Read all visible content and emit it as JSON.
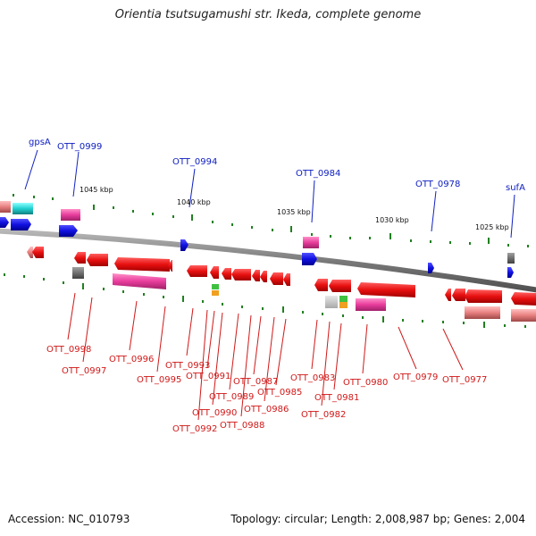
{
  "title": "Orientia tsutsugamushi str. Ikeda, complete genome",
  "footer": {
    "accession": "Accession: NC_010793",
    "topology": "Topology: circular; Length: 2,008,987 bp; Genes: 2,004"
  },
  "scale_labels": [
    "1045 kbp",
    "1040 kbp",
    "1035 kbp",
    "1030 kbp",
    "1025 kbp"
  ],
  "upper_labels": [
    "gpsA",
    "OTT_0999",
    "OTT_0994",
    "OTT_0984",
    "OTT_0978",
    "sufA"
  ],
  "lower_labels": [
    "OTT_0998",
    "OTT_0997",
    "OTT_0996",
    "OTT_0995",
    "OTT_0993",
    "OTT_0991",
    "OTT_0990",
    "OTT_0992",
    "OTT_0989",
    "OTT_0988",
    "OTT_0987",
    "OTT_0986",
    "OTT_0985",
    "OTT_0983",
    "OTT_0982",
    "OTT_0981",
    "OTT_0980",
    "OTT_0979",
    "OTT_0977"
  ],
  "colors": {
    "backbone": "#888888",
    "forward_gene": "#1010e0",
    "reverse_gene": "#e81010",
    "pink_feature": "#e83c9c",
    "salmon_feature": "#e88080",
    "cyan_feature": "#20d0d0",
    "gray_feature": "#707070",
    "tick": "#208020",
    "upper_label": "#1020c0",
    "lower_label": "#d01818"
  }
}
